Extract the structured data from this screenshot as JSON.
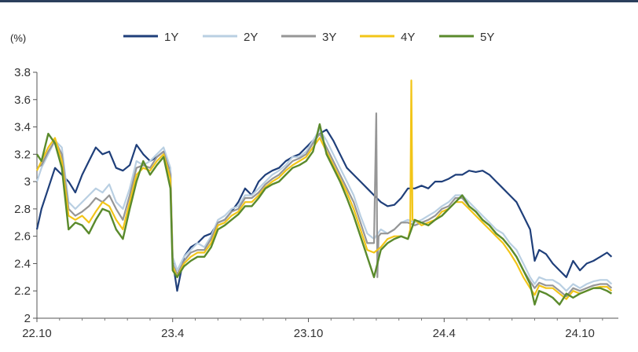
{
  "chart_data": {
    "type": "line",
    "unit_label": "(%)",
    "ylim": [
      2.0,
      3.8
    ],
    "y_ticks": [
      "2",
      "2.2",
      "2.4",
      "2.6",
      "2.8",
      "3",
      "3.2",
      "3.4",
      "3.6",
      "3.8"
    ],
    "x_ticks": [
      "22.10",
      "23.4",
      "23.10",
      "24.4",
      "24.10"
    ],
    "x_tick_positions": [
      0,
      6,
      12,
      18,
      24
    ],
    "xlim": [
      0,
      25.7
    ],
    "legend_position": "top",
    "grid": false,
    "series": [
      {
        "name": "1Y",
        "color": "#1f3f7a",
        "width": 2.2,
        "x": [
          0,
          0.2,
          0.5,
          0.8,
          1.1,
          1.4,
          1.7,
          2.0,
          2.3,
          2.6,
          2.9,
          3.2,
          3.5,
          3.8,
          4.1,
          4.4,
          4.7,
          5.0,
          5.3,
          5.6,
          5.9,
          6.0,
          6.2,
          6.5,
          6.8,
          7.1,
          7.4,
          7.7,
          8.0,
          8.3,
          8.6,
          8.9,
          9.2,
          9.5,
          9.8,
          10.1,
          10.4,
          10.7,
          11.0,
          11.3,
          11.6,
          11.9,
          12.2,
          12.5,
          12.8,
          13.1,
          13.4,
          13.7,
          14.0,
          14.3,
          14.6,
          14.9,
          15.2,
          15.5,
          15.8,
          16.1,
          16.4,
          16.7,
          17.0,
          17.3,
          17.6,
          17.9,
          18.2,
          18.5,
          18.8,
          19.1,
          19.4,
          19.7,
          20.0,
          20.3,
          20.6,
          20.9,
          21.2,
          21.5,
          21.8,
          22.0,
          22.2,
          22.5,
          22.8,
          23.1,
          23.4,
          23.7,
          24.0,
          24.3,
          24.6,
          24.9,
          25.2,
          25.4
        ],
        "values": [
          2.65,
          2.8,
          2.95,
          3.1,
          3.05,
          3.0,
          2.92,
          3.05,
          3.15,
          3.25,
          3.2,
          3.22,
          3.1,
          3.08,
          3.12,
          3.27,
          3.2,
          3.15,
          3.18,
          3.22,
          3.08,
          2.42,
          2.2,
          2.45,
          2.52,
          2.55,
          2.6,
          2.62,
          2.7,
          2.72,
          2.78,
          2.85,
          2.95,
          2.9,
          3.0,
          3.05,
          3.08,
          3.1,
          3.15,
          3.18,
          3.2,
          3.25,
          3.3,
          3.35,
          3.38,
          3.3,
          3.2,
          3.1,
          3.05,
          3.0,
          2.95,
          2.9,
          2.85,
          2.82,
          2.83,
          2.88,
          2.95,
          2.95,
          2.97,
          2.95,
          3.0,
          3.0,
          3.02,
          3.05,
          3.05,
          3.08,
          3.07,
          3.08,
          3.05,
          3.0,
          2.95,
          2.9,
          2.85,
          2.75,
          2.65,
          2.42,
          2.5,
          2.47,
          2.4,
          2.35,
          2.3,
          2.42,
          2.35,
          2.4,
          2.42,
          2.45,
          2.48,
          2.45
        ]
      },
      {
        "name": "2Y",
        "color": "#b9cfe2",
        "width": 2.2,
        "x": [
          0,
          0.2,
          0.5,
          0.8,
          1.1,
          1.4,
          1.7,
          2.0,
          2.3,
          2.6,
          2.9,
          3.2,
          3.5,
          3.8,
          4.1,
          4.4,
          4.7,
          5.0,
          5.3,
          5.6,
          5.9,
          6.0,
          6.2,
          6.5,
          6.8,
          7.1,
          7.4,
          7.7,
          8.0,
          8.3,
          8.6,
          8.9,
          9.2,
          9.5,
          9.8,
          10.1,
          10.4,
          10.7,
          11.0,
          11.3,
          11.6,
          11.9,
          12.2,
          12.5,
          12.8,
          13.1,
          13.4,
          13.7,
          14.0,
          14.3,
          14.6,
          14.9,
          15.2,
          15.5,
          15.8,
          16.1,
          16.4,
          16.7,
          17.0,
          17.3,
          17.6,
          17.9,
          18.2,
          18.5,
          18.8,
          19.1,
          19.4,
          19.7,
          20.0,
          20.3,
          20.6,
          20.9,
          21.2,
          21.5,
          21.8,
          22.0,
          22.2,
          22.5,
          22.8,
          23.1,
          23.4,
          23.7,
          24.0,
          24.3,
          24.6,
          24.9,
          25.2,
          25.4
        ],
        "values": [
          3.0,
          3.1,
          3.2,
          3.3,
          3.25,
          2.85,
          2.8,
          2.85,
          2.9,
          2.95,
          2.92,
          2.98,
          2.85,
          2.8,
          2.95,
          3.15,
          3.12,
          3.15,
          3.2,
          3.25,
          3.1,
          2.45,
          2.35,
          2.45,
          2.5,
          2.55,
          2.52,
          2.6,
          2.72,
          2.75,
          2.8,
          2.82,
          2.9,
          2.9,
          2.95,
          3.0,
          3.05,
          3.08,
          3.12,
          3.18,
          3.18,
          3.22,
          3.3,
          3.38,
          3.3,
          3.2,
          3.1,
          3.0,
          2.9,
          2.75,
          2.62,
          2.58,
          2.65,
          2.62,
          2.65,
          2.7,
          2.72,
          2.7,
          2.72,
          2.75,
          2.78,
          2.82,
          2.85,
          2.9,
          2.9,
          2.85,
          2.8,
          2.75,
          2.7,
          2.65,
          2.62,
          2.55,
          2.5,
          2.4,
          2.3,
          2.25,
          2.3,
          2.28,
          2.28,
          2.25,
          2.2,
          2.25,
          2.22,
          2.25,
          2.27,
          2.28,
          2.28,
          2.25
        ]
      },
      {
        "name": "3Y",
        "color": "#969696",
        "width": 2.2,
        "x": [
          0,
          0.2,
          0.5,
          0.8,
          1.1,
          1.4,
          1.7,
          2.0,
          2.3,
          2.6,
          2.9,
          3.2,
          3.5,
          3.8,
          4.1,
          4.4,
          4.7,
          5.0,
          5.3,
          5.6,
          5.9,
          6.0,
          6.2,
          6.5,
          6.8,
          7.1,
          7.4,
          7.7,
          8.0,
          8.3,
          8.6,
          8.9,
          9.2,
          9.5,
          9.8,
          10.1,
          10.4,
          10.7,
          11.0,
          11.3,
          11.6,
          11.9,
          12.2,
          12.5,
          12.8,
          13.1,
          13.4,
          13.7,
          14.0,
          14.3,
          14.6,
          14.9,
          15.0,
          15.05,
          15.1,
          15.2,
          15.5,
          15.8,
          16.1,
          16.4,
          16.7,
          17.0,
          17.3,
          17.6,
          17.9,
          18.2,
          18.5,
          18.8,
          19.1,
          19.4,
          19.7,
          20.0,
          20.3,
          20.6,
          20.9,
          21.2,
          21.5,
          21.8,
          22.0,
          22.2,
          22.5,
          22.8,
          23.1,
          23.4,
          23.7,
          24.0,
          24.3,
          24.6,
          24.9,
          25.2,
          25.4
        ],
        "values": [
          3.1,
          3.12,
          3.22,
          3.3,
          3.2,
          2.8,
          2.75,
          2.78,
          2.82,
          2.88,
          2.85,
          2.9,
          2.8,
          2.72,
          2.9,
          3.1,
          3.12,
          3.1,
          3.18,
          3.22,
          3.05,
          2.4,
          2.32,
          2.42,
          2.48,
          2.5,
          2.5,
          2.58,
          2.7,
          2.72,
          2.78,
          2.8,
          2.88,
          2.88,
          2.92,
          2.98,
          3.02,
          3.05,
          3.1,
          3.15,
          3.17,
          3.2,
          3.28,
          3.35,
          3.25,
          3.15,
          3.05,
          2.95,
          2.85,
          2.7,
          2.55,
          2.55,
          3.5,
          2.3,
          2.6,
          2.62,
          2.62,
          2.65,
          2.7,
          2.7,
          2.68,
          2.7,
          2.72,
          2.75,
          2.8,
          2.82,
          2.88,
          2.88,
          2.82,
          2.78,
          2.72,
          2.68,
          2.62,
          2.58,
          2.52,
          2.45,
          2.35,
          2.27,
          2.22,
          2.26,
          2.24,
          2.24,
          2.2,
          2.16,
          2.22,
          2.2,
          2.22,
          2.24,
          2.25,
          2.25,
          2.22
        ]
      },
      {
        "name": "4Y",
        "color": "#f2c518",
        "width": 2.2,
        "x": [
          0,
          0.2,
          0.5,
          0.8,
          1.1,
          1.4,
          1.7,
          2.0,
          2.3,
          2.6,
          2.9,
          3.2,
          3.5,
          3.8,
          4.1,
          4.4,
          4.7,
          5.0,
          5.3,
          5.6,
          5.9,
          6.0,
          6.2,
          6.5,
          6.8,
          7.1,
          7.4,
          7.7,
          8.0,
          8.3,
          8.6,
          8.9,
          9.2,
          9.5,
          9.8,
          10.1,
          10.4,
          10.7,
          11.0,
          11.3,
          11.6,
          11.9,
          12.2,
          12.5,
          12.8,
          13.1,
          13.4,
          13.7,
          14.0,
          14.3,
          14.6,
          14.9,
          15.2,
          15.5,
          15.8,
          16.1,
          16.4,
          16.5,
          16.55,
          16.6,
          16.7,
          17.0,
          17.3,
          17.6,
          17.9,
          18.2,
          18.5,
          18.8,
          19.1,
          19.4,
          19.7,
          20.0,
          20.3,
          20.6,
          20.9,
          21.2,
          21.5,
          21.8,
          22.0,
          22.2,
          22.5,
          22.8,
          23.1,
          23.4,
          23.7,
          24.0,
          24.3,
          24.6,
          24.9,
          25.2,
          25.4
        ],
        "values": [
          3.08,
          3.15,
          3.25,
          3.32,
          3.15,
          2.75,
          2.72,
          2.75,
          2.7,
          2.78,
          2.85,
          2.82,
          2.72,
          2.65,
          2.85,
          3.05,
          3.1,
          3.08,
          3.15,
          3.2,
          3.02,
          2.38,
          2.3,
          2.4,
          2.45,
          2.48,
          2.48,
          2.55,
          2.68,
          2.7,
          2.75,
          2.78,
          2.85,
          2.85,
          2.9,
          2.96,
          3.0,
          3.03,
          3.08,
          3.12,
          3.15,
          3.18,
          3.25,
          3.32,
          3.22,
          3.12,
          3.02,
          2.92,
          2.8,
          2.65,
          2.5,
          2.48,
          2.52,
          2.58,
          2.6,
          2.6,
          2.58,
          2.65,
          3.74,
          2.72,
          2.72,
          2.68,
          2.7,
          2.72,
          2.78,
          2.8,
          2.85,
          2.85,
          2.8,
          2.75,
          2.7,
          2.65,
          2.6,
          2.55,
          2.48,
          2.4,
          2.3,
          2.22,
          2.17,
          2.24,
          2.22,
          2.22,
          2.18,
          2.14,
          2.2,
          2.18,
          2.2,
          2.22,
          2.23,
          2.23,
          2.2
        ]
      },
      {
        "name": "5Y",
        "color": "#5a8a2c",
        "width": 2.4,
        "x": [
          0,
          0.2,
          0.5,
          0.8,
          1.1,
          1.4,
          1.7,
          2.0,
          2.3,
          2.6,
          2.9,
          3.2,
          3.5,
          3.8,
          4.1,
          4.4,
          4.7,
          5.0,
          5.3,
          5.6,
          5.9,
          6.0,
          6.2,
          6.5,
          6.8,
          7.1,
          7.4,
          7.7,
          8.0,
          8.3,
          8.6,
          8.9,
          9.2,
          9.5,
          9.8,
          10.1,
          10.4,
          10.7,
          11.0,
          11.3,
          11.6,
          11.9,
          12.2,
          12.5,
          12.8,
          13.1,
          13.4,
          13.7,
          14.0,
          14.3,
          14.6,
          14.9,
          15.2,
          15.5,
          15.8,
          16.1,
          16.4,
          16.7,
          17.0,
          17.3,
          17.6,
          17.9,
          18.2,
          18.5,
          18.8,
          19.1,
          19.4,
          19.7,
          20.0,
          20.3,
          20.6,
          20.9,
          21.2,
          21.5,
          21.8,
          22.0,
          22.2,
          22.5,
          22.8,
          23.1,
          23.4,
          23.7,
          24.0,
          24.3,
          24.6,
          24.9,
          25.2,
          25.4
        ],
        "values": [
          3.2,
          3.15,
          3.35,
          3.28,
          3.1,
          2.65,
          2.7,
          2.68,
          2.62,
          2.72,
          2.8,
          2.78,
          2.65,
          2.58,
          2.8,
          3.0,
          3.15,
          3.05,
          3.12,
          3.18,
          2.95,
          2.35,
          2.3,
          2.38,
          2.42,
          2.45,
          2.45,
          2.52,
          2.65,
          2.68,
          2.72,
          2.76,
          2.82,
          2.82,
          2.88,
          2.95,
          2.98,
          3.0,
          3.05,
          3.1,
          3.12,
          3.15,
          3.22,
          3.42,
          3.2,
          3.1,
          3.0,
          2.88,
          2.75,
          2.6,
          2.45,
          2.3,
          2.5,
          2.55,
          2.58,
          2.6,
          2.58,
          2.72,
          2.7,
          2.68,
          2.72,
          2.75,
          2.8,
          2.85,
          2.9,
          2.82,
          2.78,
          2.72,
          2.68,
          2.62,
          2.58,
          2.52,
          2.45,
          2.35,
          2.25,
          2.1,
          2.2,
          2.18,
          2.15,
          2.1,
          2.18,
          2.15,
          2.18,
          2.2,
          2.22,
          2.22,
          2.2,
          2.18
        ]
      }
    ]
  }
}
